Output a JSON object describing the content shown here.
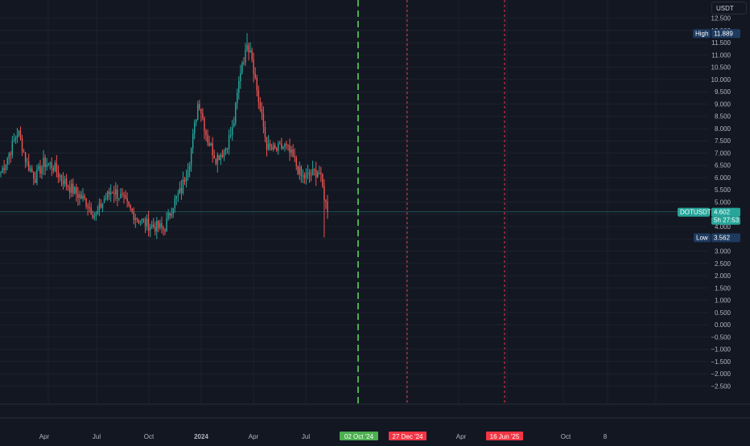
{
  "currency_button": "USDT",
  "symbol": "DOTUSDT",
  "last_price": "4.602",
  "countdown": "5h 27:53",
  "high": {
    "label": "High",
    "value": "11.889"
  },
  "low": {
    "label": "Low",
    "value": "3.562"
  },
  "y_axis": {
    "ticks": [
      "12.500",
      "12.000",
      "11.500",
      "11.000",
      "10.500",
      "10.000",
      "9.500",
      "9.000",
      "8.500",
      "8.000",
      "7.500",
      "7.000",
      "6.500",
      "6.000",
      "5.500",
      "5.000",
      "4.500",
      "4.000",
      "3.500",
      "3.000",
      "2.500",
      "2.000",
      "1.500",
      "1.000",
      "0.500",
      "0.000",
      "−0.500",
      "−1.000",
      "−1.500",
      "−2.000",
      "−2.500"
    ]
  },
  "x_axis": {
    "labels": [
      {
        "text": "Apr",
        "bold": false
      },
      {
        "text": "Jul",
        "bold": false
      },
      {
        "text": "Oct",
        "bold": false
      },
      {
        "text": "2024",
        "bold": true
      },
      {
        "text": "Apr",
        "bold": false
      },
      {
        "text": "Jul",
        "bold": false
      },
      {
        "text": "Apr",
        "bold": false
      },
      {
        "text": "Oct",
        "bold": false
      },
      {
        "text": "8",
        "bold": false
      }
    ],
    "markers": [
      {
        "text": "02 Oct '24",
        "color": "#4caf50"
      },
      {
        "text": "27 Dec '24",
        "color": "#f23645"
      },
      {
        "text": "16 Jun '25",
        "color": "#f23645"
      }
    ]
  },
  "colors": {
    "background": "#131722",
    "grid": "#1e222d",
    "up": "#26a69a",
    "down": "#ef5350",
    "marker_green": "#4caf50",
    "marker_red": "#f23645",
    "price_label": "#26a69a",
    "hl_label": "#1e3a5f"
  },
  "chart_data": {
    "type": "candlestick",
    "symbol": "DOTUSDT",
    "ylim": [
      -2.75,
      12.75
    ],
    "grid": true,
    "series": [
      {
        "name": "DOTUSDT",
        "points": [
          {
            "x": "2023-01",
            "close": 6.2
          },
          {
            "x": "2023-01b",
            "close": 7.0
          },
          {
            "x": "2023-02",
            "close": 7.9
          },
          {
            "x": "2023-02b",
            "close": 6.6
          },
          {
            "x": "2023-03",
            "close": 6.0
          },
          {
            "x": "2023-03b",
            "close": 6.6
          },
          {
            "x": "2023-04",
            "close": 6.5
          },
          {
            "x": "2023-04b",
            "close": 6.0
          },
          {
            "x": "2023-05",
            "close": 5.6
          },
          {
            "x": "2023-05b",
            "close": 5.3
          },
          {
            "x": "2023-06",
            "close": 5.0
          },
          {
            "x": "2023-06b",
            "close": 4.4
          },
          {
            "x": "2023-07",
            "close": 5.1
          },
          {
            "x": "2023-07b",
            "close": 5.5
          },
          {
            "x": "2023-08",
            "close": 5.2
          },
          {
            "x": "2023-08b",
            "close": 4.7
          },
          {
            "x": "2023-09",
            "close": 4.3
          },
          {
            "x": "2023-09b",
            "close": 4.1
          },
          {
            "x": "2023-10",
            "close": 4.0
          },
          {
            "x": "2023-10b",
            "close": 3.9
          },
          {
            "x": "2023-11",
            "close": 4.9
          },
          {
            "x": "2023-11b",
            "close": 5.5
          },
          {
            "x": "2023-12",
            "close": 6.8
          },
          {
            "x": "2023-12b",
            "close": 9.2
          },
          {
            "x": "2024-01",
            "close": 7.6
          },
          {
            "x": "2024-01b",
            "close": 6.8
          },
          {
            "x": "2024-02",
            "close": 7.1
          },
          {
            "x": "2024-02b",
            "close": 8.0
          },
          {
            "x": "2024-03",
            "close": 10.7
          },
          {
            "x": "2024-03b",
            "close": 11.4
          },
          {
            "x": "2024-04",
            "close": 9.1
          },
          {
            "x": "2024-04b",
            "close": 7.2
          },
          {
            "x": "2024-05",
            "close": 7.1
          },
          {
            "x": "2024-05b",
            "close": 7.3
          },
          {
            "x": "2024-06",
            "close": 6.8
          },
          {
            "x": "2024-06b",
            "close": 6.0
          },
          {
            "x": "2024-07",
            "close": 6.1
          },
          {
            "x": "2024-07b",
            "close": 6.3
          },
          {
            "x": "2024-08",
            "close": 4.6
          }
        ],
        "high": 11.889,
        "low": 3.562,
        "last": 4.602
      }
    ]
  }
}
